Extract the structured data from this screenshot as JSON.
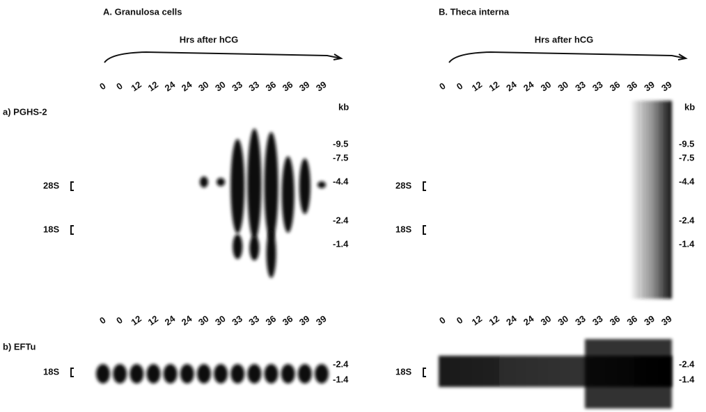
{
  "panels": [
    {
      "title": "A. Granulosa cells",
      "axis_label": "Hrs after hCG",
      "lanes": [
        "0",
        "0",
        "12",
        "12",
        "24",
        "24",
        "30",
        "30",
        "33",
        "33",
        "36",
        "36",
        "39",
        "39"
      ],
      "markers": {
        "unit": "kb",
        "top": [
          "-9.5",
          "-7.5",
          "-4.4",
          "-2.4",
          "-1.4"
        ],
        "bottom": [
          "-2.4",
          "-1.4"
        ]
      }
    },
    {
      "title": "B. Theca interna",
      "axis_label": "Hrs after hCG",
      "lanes": [
        "0",
        "0",
        "12",
        "12",
        "24",
        "24",
        "30",
        "30",
        "33",
        "33",
        "36",
        "36",
        "39",
        "39"
      ],
      "markers": {
        "unit": "kb",
        "top": [
          "-9.5",
          "-7.5",
          "-4.4",
          "-2.4",
          "-1.4"
        ],
        "bottom": [
          "-2.4",
          "-1.4"
        ]
      }
    }
  ],
  "rows": [
    "a) PGHS-2",
    "b) EFTu"
  ],
  "rrna": [
    "28S",
    "18S"
  ]
}
